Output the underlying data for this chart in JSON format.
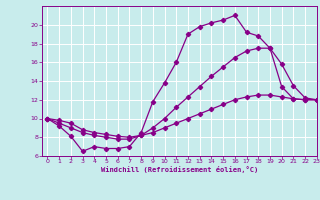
{
  "xlabel": "Windchill (Refroidissement éolien,°C)",
  "bg_color": "#c8ecec",
  "grid_color": "#ffffff",
  "line_color": "#880088",
  "line1_x": [
    0,
    1,
    2,
    3,
    4,
    5,
    6,
    7,
    8,
    9,
    10,
    11,
    12,
    13,
    14,
    15,
    16,
    17,
    18,
    19,
    20,
    21,
    22,
    23
  ],
  "line1_y": [
    10,
    9.2,
    8.1,
    6.5,
    7.0,
    6.8,
    6.8,
    7.0,
    8.5,
    11.8,
    13.8,
    16.0,
    19.0,
    19.8,
    20.2,
    20.5,
    21.0,
    19.2,
    18.8,
    17.5,
    13.4,
    12.1,
    12.0,
    12.0
  ],
  "line2_x": [
    0,
    1,
    2,
    3,
    4,
    5,
    6,
    7,
    8,
    9,
    10,
    11,
    12,
    13,
    14,
    15,
    16,
    17,
    18,
    19,
    20,
    21,
    22,
    23
  ],
  "line2_y": [
    10,
    9.5,
    9.0,
    8.5,
    8.2,
    8.0,
    7.8,
    7.8,
    8.2,
    9.0,
    10.0,
    11.2,
    12.3,
    13.4,
    14.5,
    15.5,
    16.5,
    17.2,
    17.5,
    17.5,
    15.8,
    13.5,
    12.2,
    12.0
  ],
  "line3_x": [
    0,
    1,
    2,
    3,
    4,
    5,
    6,
    7,
    8,
    9,
    10,
    11,
    12,
    13,
    14,
    15,
    16,
    17,
    18,
    19,
    20,
    21,
    22,
    23
  ],
  "line3_y": [
    10,
    9.8,
    9.5,
    8.8,
    8.5,
    8.3,
    8.1,
    8.0,
    8.2,
    8.5,
    9.0,
    9.5,
    10.0,
    10.5,
    11.0,
    11.5,
    12.0,
    12.3,
    12.5,
    12.5,
    12.3,
    12.1,
    12.0,
    12.0
  ],
  "ylim": [
    6,
    22
  ],
  "xlim": [
    -0.5,
    23
  ],
  "yticks": [
    6,
    8,
    10,
    12,
    14,
    16,
    18,
    20
  ],
  "xticks": [
    0,
    1,
    2,
    3,
    4,
    5,
    6,
    7,
    8,
    9,
    10,
    11,
    12,
    13,
    14,
    15,
    16,
    17,
    18,
    19,
    20,
    21,
    22,
    23
  ]
}
